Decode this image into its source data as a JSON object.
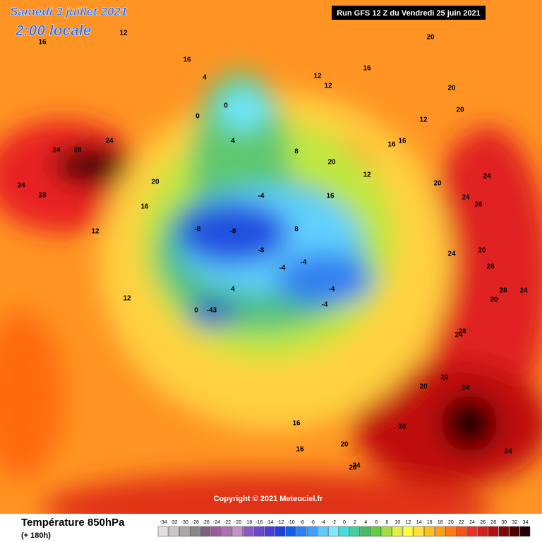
{
  "header": {
    "date": "Samedi 3 juillet 2021",
    "time": "2:00 locale",
    "run": "Run GFS 12 Z du Vendredi 25 juin 2021"
  },
  "copyright": "Copyright © 2021 Meteociel.fr",
  "footer": {
    "title": "Température 850hPa",
    "lead": "(+ 180h)"
  },
  "colorbar": {
    "ticks": [
      -34,
      -32,
      -30,
      -28,
      -26,
      -24,
      -22,
      -20,
      -18,
      -16,
      -14,
      -12,
      -10,
      -8,
      -6,
      -4,
      -2,
      0,
      2,
      4,
      6,
      8,
      10,
      12,
      14,
      16,
      18,
      20,
      22,
      24,
      26,
      28,
      30,
      32,
      34
    ],
    "colors": [
      "#e0e0e0",
      "#c8c8c8",
      "#a8a8a8",
      "#888888",
      "#806080",
      "#9c5a9c",
      "#b070b0",
      "#c890c8",
      "#8a5ac8",
      "#6a4ac8",
      "#4a3ae0",
      "#2040e0",
      "#1060f0",
      "#2a80ff",
      "#40a0ff",
      "#60c8ff",
      "#80e8ff",
      "#40e0e0",
      "#40d0a0",
      "#40c060",
      "#60d040",
      "#a0e040",
      "#e0f040",
      "#ffff40",
      "#ffe040",
      "#ffc020",
      "#ffa010",
      "#ff7a10",
      "#ff5010",
      "#f03020",
      "#d02020",
      "#b01010",
      "#800808",
      "#500000",
      "#200000"
    ]
  },
  "map_labels": [
    "20",
    "16",
    "12",
    "16",
    "4",
    "0",
    "0",
    "4",
    "8",
    "12",
    "12",
    "16",
    "20",
    "20",
    "16",
    "12",
    "20",
    "24",
    "28",
    "24",
    "28",
    "24",
    "20",
    "16",
    "12",
    "12",
    "-8",
    "-8",
    "-4",
    "-8",
    "-4",
    "-4",
    "-4",
    "-4",
    "-43",
    "0",
    "4",
    "8",
    "16",
    "12",
    "16",
    "20",
    "24",
    "28",
    "24",
    "20",
    "28",
    "24",
    "20",
    "28",
    "24",
    "28",
    "20",
    "24",
    "20",
    "16",
    "16",
    "20",
    "20",
    "24",
    "28",
    "24",
    "24"
  ]
}
